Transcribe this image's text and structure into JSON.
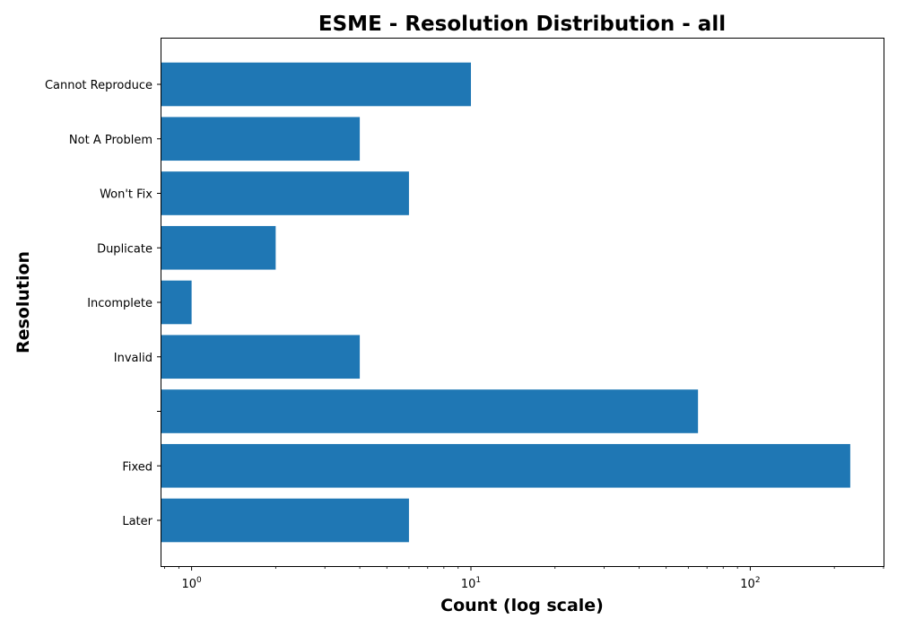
{
  "chart_data": {
    "type": "bar",
    "orientation": "horizontal",
    "title": "ESME - Resolution Distribution - all",
    "xlabel": "Count (log scale)",
    "ylabel": "Resolution",
    "x_scale": "log",
    "xlim": [
      0.78,
      300
    ],
    "grid": false,
    "bar_color": "#1f77b4",
    "categories": [
      "Cannot Reproduce",
      "Not A Problem",
      "Won't Fix",
      "Duplicate",
      "Incomplete",
      "Invalid",
      "",
      "Fixed",
      "Later"
    ],
    "values": [
      10,
      4,
      6,
      2,
      1,
      4,
      65,
      228,
      6
    ],
    "x_ticks": [
      {
        "value": 1,
        "base": "10",
        "exp": "0"
      },
      {
        "value": 10,
        "base": "10",
        "exp": "1"
      },
      {
        "value": 100,
        "base": "10",
        "exp": "2"
      }
    ]
  }
}
